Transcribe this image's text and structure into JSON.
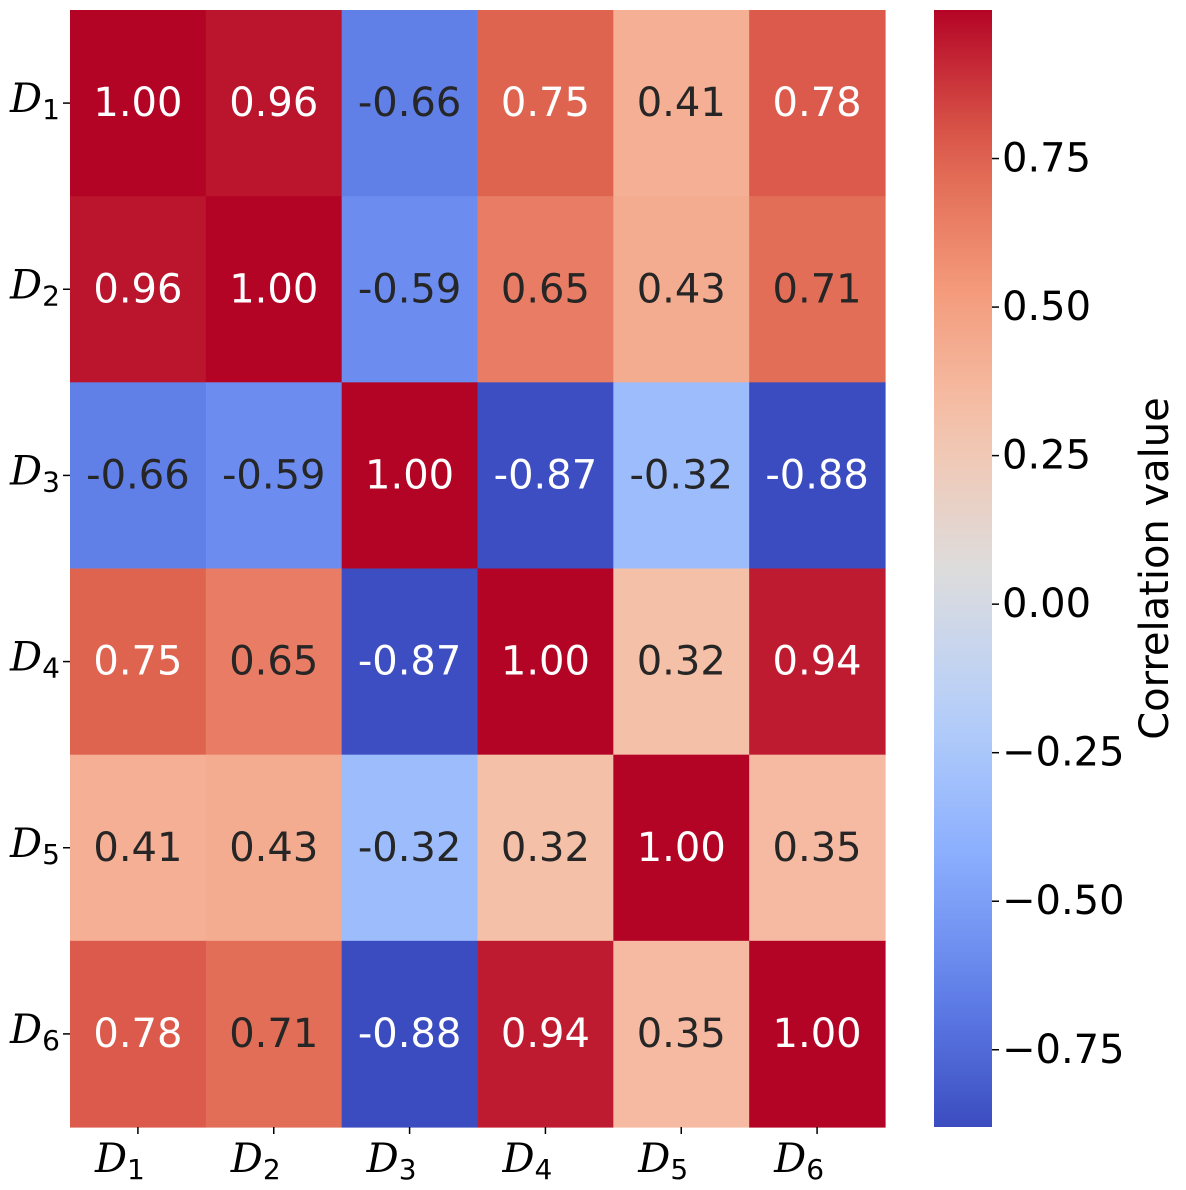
{
  "chart_data": {
    "type": "heatmap",
    "title": "",
    "xlabel": "",
    "ylabel": "",
    "colormap": "coolwarm",
    "row_labels": [
      {
        "base": "D",
        "sub": "1"
      },
      {
        "base": "D",
        "sub": "2"
      },
      {
        "base": "D",
        "sub": "3"
      },
      {
        "base": "D",
        "sub": "4"
      },
      {
        "base": "D",
        "sub": "5"
      },
      {
        "base": "D",
        "sub": "6"
      }
    ],
    "col_labels": [
      {
        "base": "D",
        "sub": "1"
      },
      {
        "base": "D",
        "sub": "2"
      },
      {
        "base": "D",
        "sub": "3"
      },
      {
        "base": "D",
        "sub": "4"
      },
      {
        "base": "D",
        "sub": "5"
      },
      {
        "base": "D",
        "sub": "6"
      }
    ],
    "values": [
      [
        1.0,
        0.96,
        -0.66,
        0.75,
        0.41,
        0.78
      ],
      [
        0.96,
        1.0,
        -0.59,
        0.65,
        0.43,
        0.71
      ],
      [
        -0.66,
        -0.59,
        1.0,
        -0.87,
        -0.32,
        -0.88
      ],
      [
        0.75,
        0.65,
        -0.87,
        1.0,
        0.32,
        0.94
      ],
      [
        0.41,
        0.43,
        -0.32,
        0.32,
        1.0,
        0.35
      ],
      [
        0.78,
        0.71,
        -0.88,
        0.94,
        0.35,
        1.0
      ]
    ],
    "value_labels": [
      [
        "1.00",
        "0.96",
        "-0.66",
        "0.75",
        "0.41",
        "0.78"
      ],
      [
        "0.96",
        "1.00",
        "-0.59",
        "0.65",
        "0.43",
        "0.71"
      ],
      [
        "-0.66",
        "-0.59",
        "1.00",
        "-0.87",
        "-0.32",
        "-0.88"
      ],
      [
        "0.75",
        "0.65",
        "-0.87",
        "1.00",
        "0.32",
        "0.94"
      ],
      [
        "0.41",
        "0.43",
        "-0.32",
        "0.32",
        "1.00",
        "0.35"
      ],
      [
        "0.78",
        "0.71",
        "-0.88",
        "0.94",
        "0.35",
        "1.00"
      ]
    ],
    "colorbar": {
      "label": "Correlation value",
      "vmin": -0.88,
      "vmax": 1.0,
      "ticks": [
        0.75,
        0.5,
        0.25,
        0.0,
        -0.25,
        -0.5,
        -0.75
      ],
      "tick_labels": [
        "0.75",
        "0.50",
        "0.25",
        "0.00",
        "−0.25",
        "−0.50",
        "−0.75"
      ]
    },
    "text_colors": {
      "dark": "#262626",
      "light": "#ffffff"
    }
  }
}
